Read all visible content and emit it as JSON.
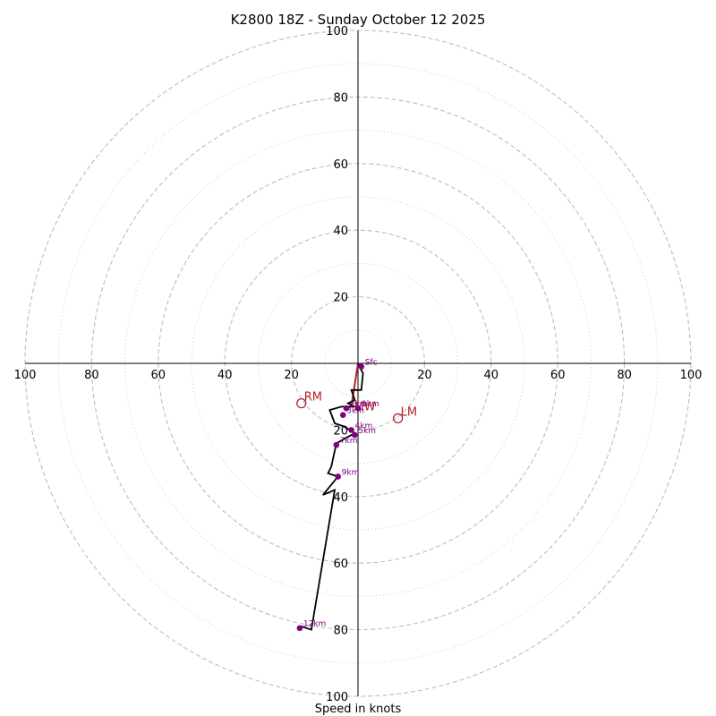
{
  "chart_data": {
    "type": "hodograph",
    "title": "K2800 18Z - Sunday October 12 2025",
    "xlabel": "Speed in knots",
    "ring_interval_knots": 10,
    "max_speed_knots": 100,
    "axis_tick_labels": [
      "20",
      "40",
      "60",
      "80",
      "100"
    ],
    "colors": {
      "trace": "#000000",
      "height_marker": "#800080",
      "storm_motion": "#b22222",
      "grid": "#bdbdbd",
      "axis": "#000000"
    },
    "trace": [
      {
        "u": 0,
        "v": 0
      },
      {
        "u": 1.5,
        "v": -3
      },
      {
        "u": 1,
        "v": -8
      },
      {
        "u": -2,
        "v": -8
      },
      {
        "u": -1,
        "v": -11
      },
      {
        "u": -3,
        "v": -12
      },
      {
        "u": -1,
        "v": -13
      },
      {
        "u": -5,
        "v": -13
      },
      {
        "u": -8.5,
        "v": -14
      },
      {
        "u": -7,
        "v": -18
      },
      {
        "u": -4,
        "v": -19
      },
      {
        "u": -1,
        "v": -21
      },
      {
        "u": -6.5,
        "v": -24
      },
      {
        "u": -8,
        "v": -31
      },
      {
        "u": -9,
        "v": -33
      },
      {
        "u": -6,
        "v": -34
      },
      {
        "u": -10.5,
        "v": -39.5
      },
      {
        "u": -7,
        "v": -38
      },
      {
        "u": -14,
        "v": -80
      },
      {
        "u": -17,
        "v": -79
      }
    ],
    "height_markers": [
      {
        "label": "Sfc",
        "u": 1,
        "v": -1
      },
      {
        "label": "2km",
        "u": -3.5,
        "v": -13.5
      },
      {
        "label": "1km",
        "u": 0,
        "v": -13.5
      },
      {
        "label": "3km",
        "u": -4.5,
        "v": -15.5
      },
      {
        "label": "4km",
        "u": -2,
        "v": -20
      },
      {
        "label": "5km",
        "u": -1,
        "v": -21.5
      },
      {
        "label": "7km",
        "u": -6.5,
        "v": -24.5
      },
      {
        "label": "9km",
        "u": -6,
        "v": -34
      },
      {
        "label": "12km",
        "u": -17.5,
        "v": -79.5
      }
    ],
    "storm_motion": [
      {
        "label": "RM",
        "u": -17,
        "v": -12
      },
      {
        "label": "LM",
        "u": 12,
        "v": -16.5
      },
      {
        "label": "MW",
        "u": -2,
        "v": -13
      }
    ]
  }
}
